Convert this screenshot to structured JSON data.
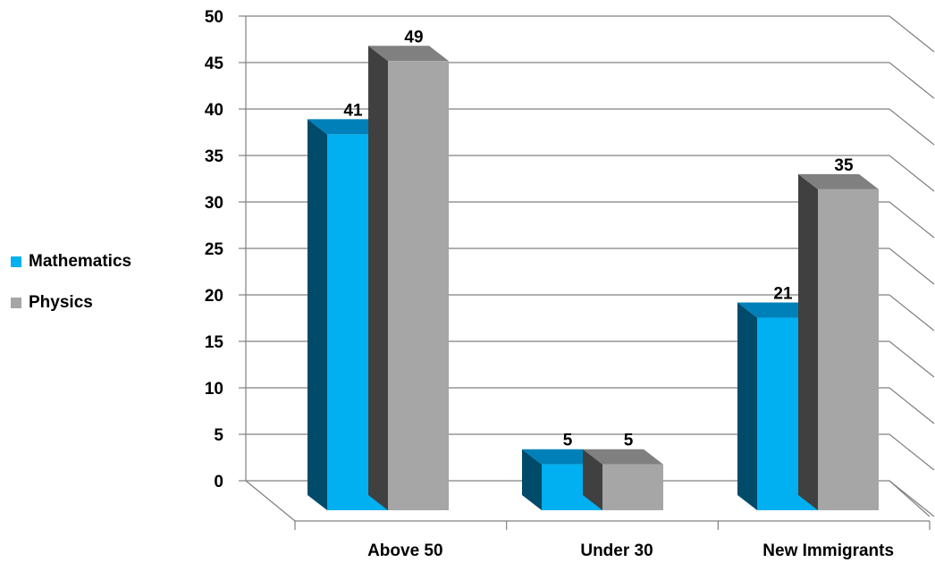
{
  "chart_data": {
    "type": "bar",
    "categories": [
      "Above 50",
      "Under 30",
      "New Immigrants"
    ],
    "series": [
      {
        "name": "Mathematics",
        "values": [
          41,
          5,
          21
        ],
        "color": "#00b0f0",
        "side_color": "#004a6a",
        "top_color": "#0080b8"
      },
      {
        "name": "Physics",
        "values": [
          49,
          5,
          35
        ],
        "color": "#a6a6a6",
        "side_color": "#404040",
        "top_color": "#808080"
      }
    ],
    "ylim": [
      0,
      50
    ],
    "y_ticks": [
      "0",
      "5",
      "10",
      "15",
      "20",
      "25",
      "30",
      "35",
      "40",
      "45",
      "50"
    ],
    "grid": true,
    "legend_position": "left",
    "three_d": true
  }
}
